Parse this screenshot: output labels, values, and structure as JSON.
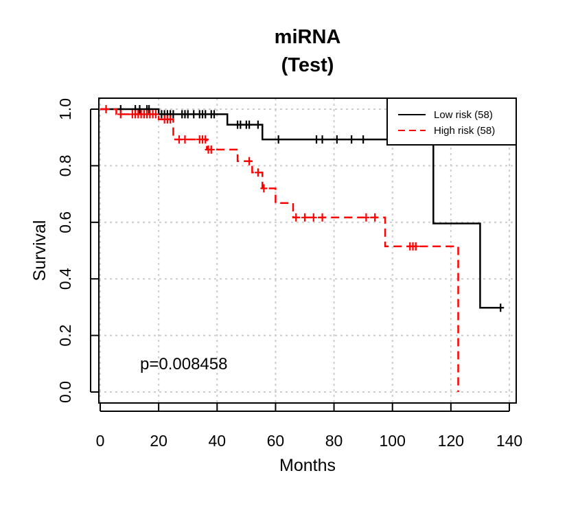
{
  "chart_data": {
    "type": "line",
    "title": "miRNA",
    "subtitle": "(Test)",
    "xlabel": "Months",
    "ylabel": "Survival",
    "xlim": [
      0,
      140
    ],
    "ylim": [
      0,
      1
    ],
    "x_ticks": [
      "0",
      "20",
      "40",
      "60",
      "80",
      "100",
      "120",
      "140"
    ],
    "y_ticks": [
      "0.0",
      "0.2",
      "0.4",
      "0.6",
      "0.8",
      "1.0"
    ],
    "grid": true,
    "legend_position": "top-right",
    "annotation": "p=0.008458",
    "colors": {
      "low": "#000000",
      "high": "#ff0000",
      "grid": "#cccccc"
    },
    "series": [
      {
        "name": "Low risk (58)",
        "line_style": "solid",
        "steps": [
          [
            0,
            1.0
          ],
          [
            20,
            0.982
          ],
          [
            43.5,
            0.945
          ],
          [
            55.5,
            0.893
          ],
          [
            98,
            0.893
          ],
          [
            114,
            0.596
          ],
          [
            130,
            0.298
          ],
          [
            137,
            0.298
          ]
        ],
        "censored": [
          [
            7,
            1.0
          ],
          [
            12,
            1.0
          ],
          [
            13.5,
            1.0
          ],
          [
            16,
            1.0
          ],
          [
            16.7,
            1.0
          ],
          [
            21,
            0.982
          ],
          [
            22,
            0.982
          ],
          [
            23,
            0.982
          ],
          [
            24,
            0.982
          ],
          [
            25,
            0.982
          ],
          [
            28,
            0.982
          ],
          [
            29,
            0.982
          ],
          [
            30,
            0.982
          ],
          [
            32,
            0.982
          ],
          [
            34,
            0.982
          ],
          [
            35,
            0.982
          ],
          [
            36,
            0.982
          ],
          [
            38,
            0.982
          ],
          [
            39,
            0.982
          ],
          [
            47,
            0.945
          ],
          [
            48,
            0.945
          ],
          [
            50,
            0.945
          ],
          [
            51,
            0.945
          ],
          [
            54,
            0.945
          ],
          [
            61,
            0.893
          ],
          [
            74,
            0.893
          ],
          [
            76,
            0.893
          ],
          [
            81,
            0.893
          ],
          [
            86,
            0.893
          ],
          [
            90,
            0.893
          ],
          [
            137,
            0.298
          ]
        ]
      },
      {
        "name": "High risk (58)",
        "line_style": "dashed",
        "steps": [
          [
            0,
            1.0
          ],
          [
            5.5,
            0.982
          ],
          [
            20,
            0.964
          ],
          [
            25,
            0.893
          ],
          [
            36.5,
            0.857
          ],
          [
            47,
            0.816
          ],
          [
            52,
            0.776
          ],
          [
            55.5,
            0.72
          ],
          [
            60,
            0.668
          ],
          [
            66,
            0.617
          ],
          [
            97.5,
            0.515
          ],
          [
            122.5,
            0.0
          ]
        ],
        "censored": [
          [
            2,
            1.0
          ],
          [
            7,
            0.982
          ],
          [
            11,
            0.982
          ],
          [
            12,
            0.982
          ],
          [
            13,
            0.982
          ],
          [
            14,
            0.982
          ],
          [
            15,
            0.982
          ],
          [
            16,
            0.982
          ],
          [
            17,
            0.982
          ],
          [
            18,
            0.982
          ],
          [
            19,
            0.982
          ],
          [
            22,
            0.964
          ],
          [
            23,
            0.964
          ],
          [
            24,
            0.964
          ],
          [
            27,
            0.893
          ],
          [
            29,
            0.893
          ],
          [
            34,
            0.893
          ],
          [
            35,
            0.893
          ],
          [
            36,
            0.893
          ],
          [
            37,
            0.857
          ],
          [
            38,
            0.857
          ],
          [
            51,
            0.816
          ],
          [
            54,
            0.776
          ],
          [
            56,
            0.72
          ],
          [
            67,
            0.617
          ],
          [
            70,
            0.617
          ],
          [
            73,
            0.617
          ],
          [
            76,
            0.617
          ],
          [
            91,
            0.617
          ],
          [
            94,
            0.617
          ],
          [
            106,
            0.515
          ],
          [
            107,
            0.515
          ],
          [
            108,
            0.515
          ]
        ]
      }
    ]
  }
}
